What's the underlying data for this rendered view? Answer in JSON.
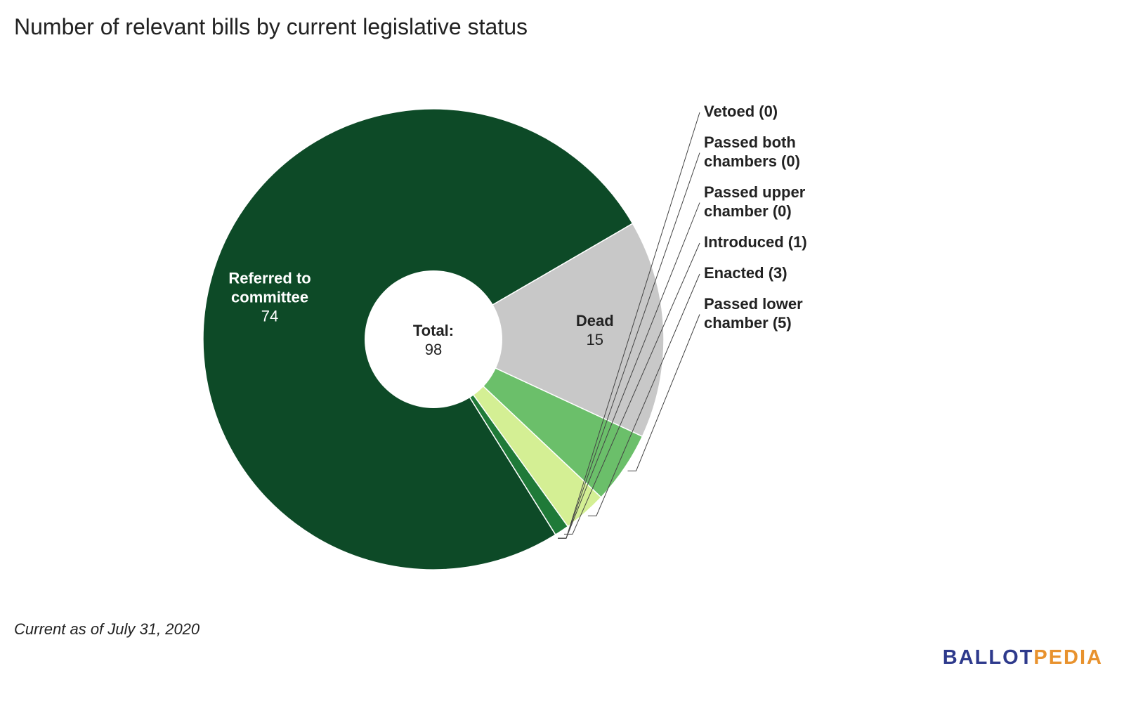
{
  "chart_data": {
    "type": "pie",
    "title": "Number of relevant bills by current legislative status",
    "donut": true,
    "center_label": "Total:",
    "total": 98,
    "slices": [
      {
        "name": "Referred to committee",
        "value": 74,
        "color": "#0d4a27",
        "label_lines": [
          "Referred to",
          "committee"
        ],
        "label_inside": true
      },
      {
        "name": "Dead",
        "value": 15,
        "color": "#c8c8c8",
        "label_lines": [
          "Dead"
        ],
        "label_inside": true
      },
      {
        "name": "Passed lower chamber",
        "value": 5,
        "color": "#6bbf6a",
        "callout_lines": [
          "Passed lower",
          "chamber (5)"
        ]
      },
      {
        "name": "Enacted",
        "value": 3,
        "color": "#d4ef94",
        "callout_lines": [
          "Enacted (3)"
        ]
      },
      {
        "name": "Introduced",
        "value": 1,
        "color": "#1f7a38",
        "callout_lines": [
          "Introduced (1)"
        ]
      },
      {
        "name": "Passed upper chamber",
        "value": 0,
        "color": "#3a9a4e",
        "callout_lines": [
          "Passed upper",
          "chamber (0)"
        ]
      },
      {
        "name": "Passed both chambers",
        "value": 0,
        "color": "#2e8b46",
        "callout_lines": [
          "Passed both",
          "chambers (0)"
        ]
      },
      {
        "name": "Vetoed",
        "value": 0,
        "color": "#9b2f2f",
        "callout_lines": [
          "Vetoed (0)"
        ]
      }
    ]
  },
  "footnote": "Current as of July 31, 2020",
  "logo": {
    "part1": "BALLOT",
    "part2": "PEDIA",
    "color1": "#2e3a8c",
    "color2": "#e8922e"
  }
}
